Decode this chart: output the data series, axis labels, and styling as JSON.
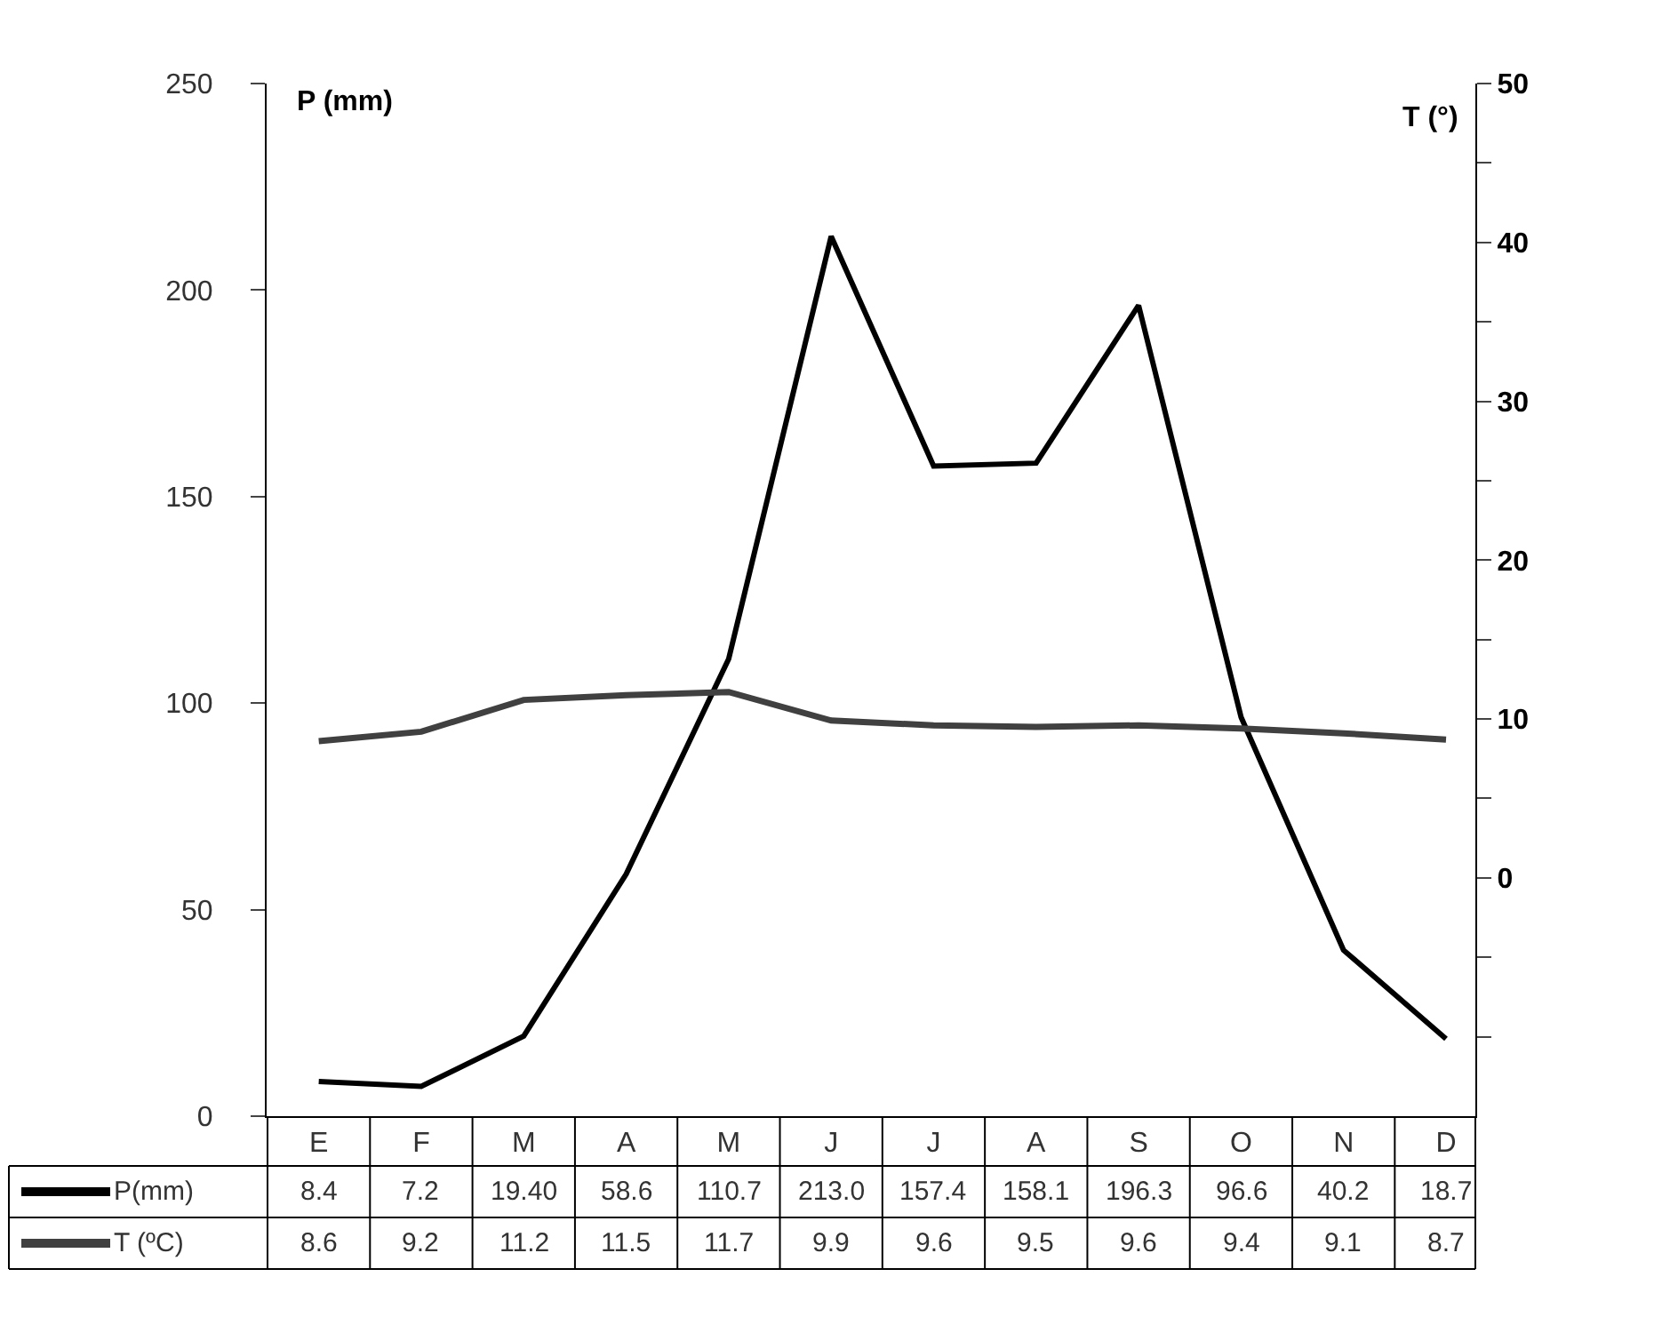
{
  "chart_data": {
    "type": "line",
    "categories": [
      "E",
      "F",
      "M",
      "A",
      "M",
      "J",
      "J",
      "A",
      "S",
      "O",
      "N",
      "D"
    ],
    "ylabel": "P (mm)",
    "y2label": "T (°)",
    "ylim": [
      0,
      250
    ],
    "yticks": [
      0,
      50,
      100,
      150,
      200,
      250
    ],
    "y2lim": [
      -15,
      50
    ],
    "y2ticks": [
      {
        "value": -10,
        "label": null
      },
      {
        "value": -5,
        "label": null
      },
      0,
      {
        "value": 5,
        "label": null
      },
      10,
      {
        "value": 15,
        "label": null
      },
      20,
      {
        "value": 25,
        "label": null
      },
      30,
      {
        "value": 35,
        "label": null
      },
      40,
      {
        "value": 45,
        "label": null
      },
      50
    ],
    "legend": "bottom",
    "marker": "none",
    "line_style": "solid",
    "series": [
      {
        "name": "P(mm)",
        "color": "#000000",
        "values": [
          8.4,
          7.2,
          19.4,
          58.6,
          110.7,
          213.0,
          157.4,
          158.1,
          196.3,
          96.6,
          40.2,
          18.7
        ],
        "value_labels": [
          "8.4",
          "7.2",
          "19.40",
          "58.6",
          "110.7",
          "213.0",
          "157.4",
          "158.1",
          "196.3",
          "96.6",
          "40.2",
          "18.7"
        ]
      },
      {
        "name": "T (ºC)",
        "color": "#404040",
        "axis": "y2",
        "values": [
          8.6,
          9.2,
          11.2,
          11.5,
          11.7,
          9.9,
          9.6,
          9.5,
          9.6,
          9.4,
          9.1,
          8.7
        ],
        "value_labels": [
          "8.6",
          "9.2",
          "11.2",
          "11.5",
          "11.7",
          "9.9",
          "9.6",
          "9.5",
          "9.6",
          "9.4",
          "9.1",
          "8.7"
        ]
      }
    ]
  }
}
